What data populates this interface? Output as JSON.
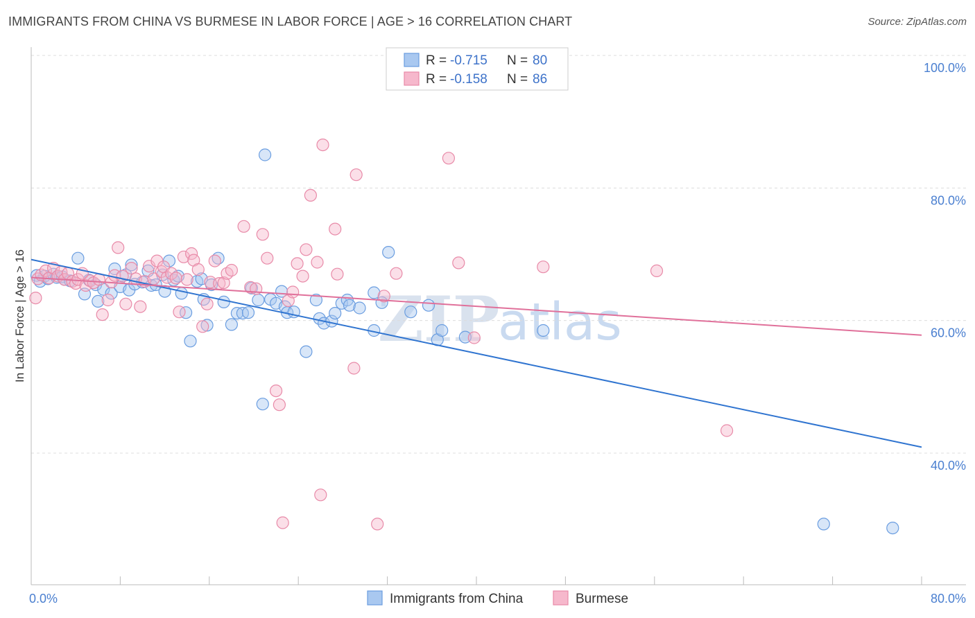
{
  "title": "IMMIGRANTS FROM CHINA VS BURMESE IN LABOR FORCE | AGE > 16 CORRELATION CHART",
  "source": "Source: ZipAtlas.com",
  "watermark": {
    "zip": "ZIP",
    "atlas": "atlas"
  },
  "colors": {
    "blue_fill": "#a9c8f0",
    "blue_stroke": "#6a9de0",
    "blue_line": "#2f74d0",
    "pink_fill": "#f6b8cc",
    "pink_stroke": "#e88aa8",
    "pink_line": "#e0709a",
    "grid": "#dcdcdc",
    "tick_label": "#4a7fd0"
  },
  "legend_top": {
    "rows": [
      {
        "r_label": "R =",
        "r_value": "-0.715",
        "n_label": "N =",
        "n_value": "80",
        "series": "china"
      },
      {
        "r_label": "R =",
        "r_value": "-0.158",
        "n_label": "N =",
        "n_value": "86",
        "series": "burmese"
      }
    ]
  },
  "legend_bottom": {
    "items": [
      {
        "label": "Immigrants from China",
        "series": "china"
      },
      {
        "label": "Burmese",
        "series": "burmese"
      }
    ]
  },
  "chart_data": {
    "type": "scatter",
    "title": "IMMIGRANTS FROM CHINA VS BURMESE IN LABOR FORCE | AGE > 16 CORRELATION CHART",
    "xlabel": "",
    "ylabel": "In Labor Force | Age > 16",
    "xlim": [
      0,
      80
    ],
    "ylim": [
      20,
      102
    ],
    "x_tick_labels": [
      {
        "value": 0,
        "label": "0.0%"
      },
      {
        "value": 80,
        "label": "80.0%"
      }
    ],
    "y_tick_labels": [
      {
        "value": 100,
        "label": "100.0%"
      },
      {
        "value": 80,
        "label": "80.0%"
      },
      {
        "value": 60,
        "label": "60.0%"
      },
      {
        "value": 40,
        "label": "40.0%"
      }
    ],
    "y_gridlines": [
      100,
      80,
      60,
      40
    ],
    "series": [
      {
        "name": "Immigrants from China",
        "key": "china",
        "r": -0.715,
        "n": 80,
        "trend": {
          "x0": 0,
          "y0": 69.2,
          "x1": 80,
          "y1": 40.9
        },
        "points": [
          [
            0.5,
            66.8
          ],
          [
            0.8,
            65.9
          ],
          [
            1.2,
            66.7
          ],
          [
            1.5,
            66.3
          ],
          [
            2.0,
            67.0
          ],
          [
            2.3,
            66.5
          ],
          [
            2.8,
            66.6
          ],
          [
            3.0,
            66.2
          ],
          [
            3.5,
            66.0
          ],
          [
            4.2,
            69.4
          ],
          [
            4.8,
            64.0
          ],
          [
            5.2,
            66.1
          ],
          [
            5.8,
            65.4
          ],
          [
            6.0,
            62.9
          ],
          [
            6.5,
            64.7
          ],
          [
            7.2,
            64.1
          ],
          [
            7.5,
            67.8
          ],
          [
            8.0,
            65.1
          ],
          [
            8.5,
            66.9
          ],
          [
            8.8,
            64.6
          ],
          [
            9.0,
            68.4
          ],
          [
            9.3,
            65.5
          ],
          [
            10.0,
            65.8
          ],
          [
            10.5,
            67.5
          ],
          [
            10.8,
            65.3
          ],
          [
            11.2,
            65.4
          ],
          [
            11.8,
            66.9
          ],
          [
            12.0,
            64.4
          ],
          [
            12.4,
            69.0
          ],
          [
            12.8,
            66.1
          ],
          [
            13.2,
            66.7
          ],
          [
            13.5,
            64.1
          ],
          [
            13.9,
            61.2
          ],
          [
            14.3,
            56.9
          ],
          [
            14.9,
            65.9
          ],
          [
            15.3,
            66.3
          ],
          [
            15.5,
            63.2
          ],
          [
            15.8,
            59.3
          ],
          [
            16.2,
            65.4
          ],
          [
            16.8,
            69.4
          ],
          [
            17.3,
            62.8
          ],
          [
            18.0,
            59.4
          ],
          [
            18.5,
            61.1
          ],
          [
            19.0,
            61.1
          ],
          [
            19.5,
            61.2
          ],
          [
            19.8,
            64.9
          ],
          [
            20.4,
            63.1
          ],
          [
            20.8,
            47.4
          ],
          [
            21.0,
            85.0
          ],
          [
            21.5,
            63.2
          ],
          [
            22.0,
            62.6
          ],
          [
            22.5,
            64.4
          ],
          [
            22.8,
            62.1
          ],
          [
            23.0,
            61.2
          ],
          [
            23.6,
            61.3
          ],
          [
            24.7,
            55.3
          ],
          [
            25.6,
            63.1
          ],
          [
            25.9,
            60.3
          ],
          [
            26.3,
            59.6
          ],
          [
            27.0,
            59.9
          ],
          [
            27.3,
            61.1
          ],
          [
            27.9,
            62.6
          ],
          [
            28.4,
            63.1
          ],
          [
            28.6,
            62.3
          ],
          [
            29.5,
            61.9
          ],
          [
            30.8,
            64.2
          ],
          [
            30.8,
            58.5
          ],
          [
            31.5,
            62.7
          ],
          [
            32.1,
            70.3
          ],
          [
            34.1,
            61.3
          ],
          [
            35.7,
            62.3
          ],
          [
            36.5,
            57.1
          ],
          [
            36.9,
            58.5
          ],
          [
            39.0,
            57.5
          ],
          [
            46.0,
            58.5
          ],
          [
            71.2,
            29.3
          ],
          [
            77.4,
            28.7
          ]
        ]
      },
      {
        "name": "Burmese",
        "key": "burmese",
        "r": -0.158,
        "n": 86,
        "trend": {
          "x0": 0,
          "y0": 66.5,
          "x1": 80,
          "y1": 57.8
        },
        "points": [
          [
            0.4,
            63.4
          ],
          [
            0.6,
            66.3
          ],
          [
            0.9,
            66.9
          ],
          [
            1.3,
            67.5
          ],
          [
            1.6,
            66.4
          ],
          [
            2.0,
            67.9
          ],
          [
            2.4,
            66.7
          ],
          [
            2.7,
            67.3
          ],
          [
            3.0,
            66.2
          ],
          [
            3.3,
            67.1
          ],
          [
            3.7,
            65.9
          ],
          [
            4.0,
            65.6
          ],
          [
            4.2,
            66.2
          ],
          [
            4.6,
            67.1
          ],
          [
            4.9,
            65.3
          ],
          [
            5.3,
            66.0
          ],
          [
            5.6,
            65.7
          ],
          [
            6.1,
            66.2
          ],
          [
            6.4,
            60.9
          ],
          [
            6.9,
            63.1
          ],
          [
            7.2,
            65.8
          ],
          [
            7.5,
            66.8
          ],
          [
            7.8,
            71.0
          ],
          [
            8.2,
            66.7
          ],
          [
            8.5,
            62.5
          ],
          [
            9.0,
            67.9
          ],
          [
            9.4,
            66.3
          ],
          [
            9.8,
            62.1
          ],
          [
            10.2,
            65.9
          ],
          [
            10.6,
            68.2
          ],
          [
            11.0,
            66.3
          ],
          [
            11.3,
            69.0
          ],
          [
            11.7,
            67.4
          ],
          [
            11.9,
            68.1
          ],
          [
            12.2,
            66.5
          ],
          [
            12.6,
            67.1
          ],
          [
            13.0,
            66.4
          ],
          [
            13.3,
            61.3
          ],
          [
            13.7,
            69.6
          ],
          [
            14.0,
            66.2
          ],
          [
            14.4,
            70.1
          ],
          [
            14.6,
            69.1
          ],
          [
            15.0,
            67.7
          ],
          [
            15.4,
            59.1
          ],
          [
            15.8,
            62.5
          ],
          [
            16.1,
            65.8
          ],
          [
            16.5,
            69.0
          ],
          [
            16.9,
            65.6
          ],
          [
            17.3,
            65.7
          ],
          [
            17.6,
            67.1
          ],
          [
            18.0,
            67.6
          ],
          [
            19.1,
            74.2
          ],
          [
            19.7,
            65.0
          ],
          [
            20.2,
            64.8
          ],
          [
            20.8,
            73.0
          ],
          [
            21.2,
            69.4
          ],
          [
            22.0,
            49.4
          ],
          [
            22.3,
            47.3
          ],
          [
            22.6,
            29.5
          ],
          [
            23.1,
            63.0
          ],
          [
            23.5,
            64.3
          ],
          [
            23.9,
            68.6
          ],
          [
            24.4,
            66.7
          ],
          [
            24.7,
            70.7
          ],
          [
            25.1,
            78.9
          ],
          [
            25.7,
            68.8
          ],
          [
            26.0,
            33.7
          ],
          [
            26.2,
            86.5
          ],
          [
            27.3,
            73.8
          ],
          [
            27.5,
            67.0
          ],
          [
            29.0,
            52.8
          ],
          [
            29.2,
            82.0
          ],
          [
            31.1,
            29.3
          ],
          [
            31.7,
            63.7
          ],
          [
            32.8,
            67.1
          ],
          [
            37.5,
            84.5
          ],
          [
            38.4,
            68.7
          ],
          [
            39.8,
            57.4
          ],
          [
            46.0,
            68.1
          ],
          [
            56.2,
            67.5
          ],
          [
            62.5,
            43.4
          ]
        ]
      }
    ]
  }
}
